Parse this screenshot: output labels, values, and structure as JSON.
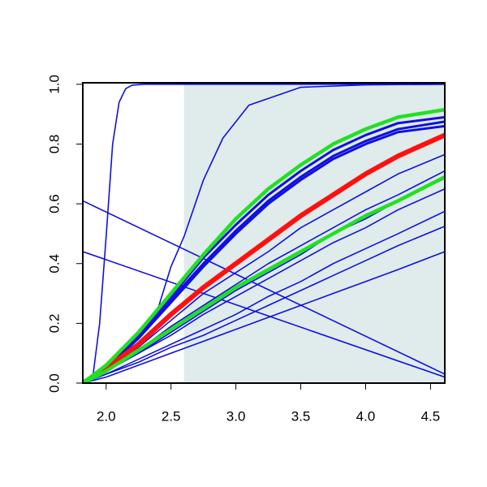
{
  "chart_data": {
    "type": "line",
    "x": [
      1.82,
      2.0,
      2.25,
      2.5,
      2.75,
      3.0,
      3.25,
      3.5,
      3.75,
      4.0,
      4.25,
      4.61
    ],
    "xlim": [
      1.82,
      4.61
    ],
    "ylim": [
      0,
      1.005
    ],
    "xticks": [
      {
        "value": 2.0,
        "label": "2.0"
      },
      2.5,
      {
        "value": 3.0,
        "label": "3.0"
      },
      3.5,
      {
        "value": 4.0,
        "label": "4.0"
      },
      4.5
    ],
    "yticks": [
      {
        "value": 0,
        "label": "0.0"
      },
      0.2,
      0.4,
      0.6,
      0.8,
      {
        "value": 1,
        "label": "1.0"
      }
    ],
    "shade": {
      "xlim": [
        2.6,
        4.61
      ],
      "ylim": [
        0,
        1
      ],
      "color": "#dfeceb"
    },
    "series": [
      {
        "color": "#1010e0",
        "linewidth": 1.6,
        "x": [
          1.82,
          1.9,
          1.95,
          2.0,
          2.05,
          2.1,
          2.15,
          2.2,
          2.3,
          4.61
        ],
        "values": [
          0,
          0.03,
          0.2,
          0.49,
          0.8,
          0.94,
          0.985,
          0.997,
          1,
          1
        ]
      },
      {
        "color": "#1010e0",
        "linewidth": 1.6,
        "x": [
          1.85,
          2.1,
          2.3,
          2.4,
          2.5,
          2.6,
          2.75,
          2.9,
          3.1,
          3.5,
          4.0,
          4.61
        ],
        "values": [
          0,
          0.1,
          0.2,
          0.25,
          0.39,
          0.49,
          0.68,
          0.82,
          0.93,
          0.99,
          0.998,
          1
        ]
      },
      {
        "color": "#1010e0",
        "linewidth": 3,
        "values": [
          0,
          0.06,
          0.17,
          0.29,
          0.42,
          0.53,
          0.63,
          0.71,
          0.78,
          0.83,
          0.87,
          0.89
        ]
      },
      {
        "color": "#1010e0",
        "linewidth": 3,
        "values": [
          0,
          0.05,
          0.16,
          0.28,
          0.4,
          0.51,
          0.61,
          0.69,
          0.76,
          0.81,
          0.85,
          0.875
        ]
      },
      {
        "color": "#1010e0",
        "linewidth": 3,
        "values": [
          0,
          0.05,
          0.15,
          0.27,
          0.39,
          0.5,
          0.6,
          0.68,
          0.75,
          0.8,
          0.84,
          0.86
        ]
      },
      {
        "color": "#1010e0",
        "linewidth": 1.6,
        "values": [
          0,
          0.05,
          0.12,
          0.21,
          0.3,
          0.37,
          0.44,
          0.52,
          0.58,
          0.64,
          0.7,
          0.765
        ]
      },
      {
        "color": "#1010e0",
        "linewidth": 1.6,
        "values": [
          0,
          0.04,
          0.11,
          0.19,
          0.26,
          0.33,
          0.4,
          0.46,
          0.52,
          0.58,
          0.63,
          0.71
        ]
      },
      {
        "color": "#1010e0",
        "linewidth": 1.6,
        "values": [
          0,
          0.04,
          0.1,
          0.17,
          0.24,
          0.31,
          0.37,
          0.43,
          0.5,
          0.55,
          0.61,
          0.685
        ]
      },
      {
        "color": "#1010e0",
        "linewidth": 1.6,
        "values": [
          0,
          0.04,
          0.1,
          0.16,
          0.23,
          0.29,
          0.35,
          0.41,
          0.47,
          0.52,
          0.58,
          0.65
        ]
      },
      {
        "color": "#1010e0",
        "linewidth": 1.6,
        "values": [
          0,
          0.03,
          0.08,
          0.13,
          0.18,
          0.23,
          0.29,
          0.34,
          0.4,
          0.45,
          0.5,
          0.575
        ]
      },
      {
        "color": "#1010e0",
        "linewidth": 1.6,
        "values": [
          0,
          0.03,
          0.07,
          0.12,
          0.16,
          0.21,
          0.26,
          0.31,
          0.36,
          0.41,
          0.46,
          0.525
        ]
      },
      {
        "color": "#1010e0",
        "linewidth": 1.6,
        "values": [
          0,
          0.02,
          0.06,
          0.1,
          0.14,
          0.18,
          0.22,
          0.26,
          0.3,
          0.34,
          0.38,
          0.44
        ]
      },
      {
        "color": "#1010e0",
        "linewidth": 1.6,
        "x": [
          1.82,
          4.61
        ],
        "values": [
          0.61,
          0.03
        ]
      },
      {
        "color": "#1010e0",
        "linewidth": 1.6,
        "x": [
          1.82,
          4.61
        ],
        "values": [
          0.44,
          0.02
        ]
      },
      {
        "color": "#ff1010",
        "linewidth": 6,
        "values": [
          0,
          0.05,
          0.13,
          0.23,
          0.32,
          0.4,
          0.48,
          0.56,
          0.63,
          0.7,
          0.76,
          0.83
        ]
      },
      {
        "color": "#22e022",
        "linewidth": 4.5,
        "values": [
          0,
          0.06,
          0.17,
          0.3,
          0.43,
          0.55,
          0.65,
          0.73,
          0.8,
          0.85,
          0.89,
          0.915
        ]
      },
      {
        "color": "#22e022",
        "linewidth": 4.5,
        "values": [
          0,
          0.04,
          0.11,
          0.18,
          0.25,
          0.32,
          0.38,
          0.44,
          0.5,
          0.56,
          0.61,
          0.69
        ]
      }
    ]
  }
}
